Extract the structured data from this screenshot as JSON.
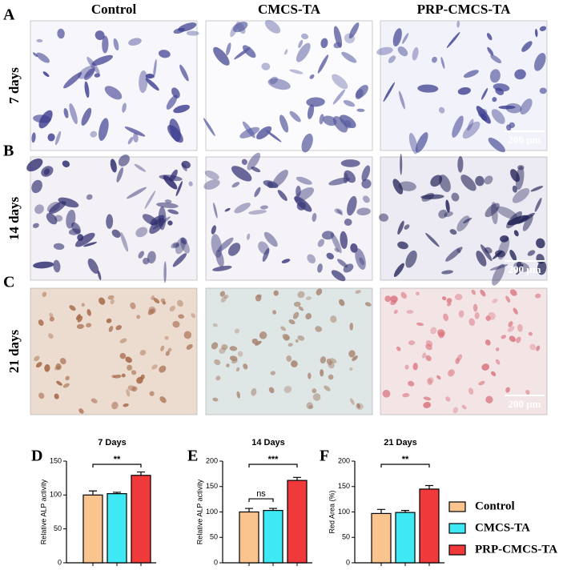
{
  "columns": [
    "Control",
    "CMCS-TA",
    "PRP-CMCS-TA"
  ],
  "rows": [
    {
      "panel": "A",
      "label": "7 days",
      "scale_bar": "200 μm"
    },
    {
      "panel": "B",
      "label": "14 days",
      "scale_bar": "200 μm"
    },
    {
      "panel": "C",
      "label": "21 days",
      "scale_bar": "200 μm"
    }
  ],
  "chart_data": [
    {
      "type": "bar",
      "panel": "D",
      "title": "7 Days",
      "ylabel": "Relative ALP activity",
      "values": [
        100,
        102,
        129
      ],
      "errors": [
        6,
        2,
        5
      ],
      "colors": [
        "#f9c48e",
        "#3ee8f5",
        "#f0393b"
      ],
      "ylim": [
        0,
        150
      ],
      "yticks": [
        0,
        50,
        100,
        150
      ],
      "significance": [
        {
          "from": 0,
          "to": 2,
          "label": "**"
        }
      ]
    },
    {
      "type": "bar",
      "panel": "E",
      "title": "14 Days",
      "ylabel": "Relative ALP activity",
      "values": [
        100,
        103,
        162
      ],
      "errors": [
        7,
        4,
        6
      ],
      "colors": [
        "#f9c48e",
        "#3ee8f5",
        "#f0393b"
      ],
      "ylim": [
        0,
        200
      ],
      "yticks": [
        0,
        50,
        100,
        150,
        200
      ],
      "significance": [
        {
          "from": 0,
          "to": 1,
          "label": "ns"
        },
        {
          "from": 0,
          "to": 2,
          "label": "***"
        }
      ]
    },
    {
      "type": "bar",
      "panel": "F",
      "title": "21 Days",
      "ylabel": "Red Area (%)",
      "values": [
        97,
        99,
        145
      ],
      "errors": [
        8,
        4,
        7
      ],
      "colors": [
        "#f9c48e",
        "#3ee8f5",
        "#f0393b"
      ],
      "ylim": [
        0,
        200
      ],
      "yticks": [
        0,
        50,
        100,
        150,
        200
      ],
      "significance": [
        {
          "from": 0,
          "to": 2,
          "label": "**"
        }
      ]
    }
  ],
  "legend": [
    {
      "name": "Control",
      "color": "#f9c48e"
    },
    {
      "name": "CMCS-TA",
      "color": "#3ee8f5"
    },
    {
      "name": "PRP-CMCS-TA",
      "color": "#f0393b"
    }
  ]
}
